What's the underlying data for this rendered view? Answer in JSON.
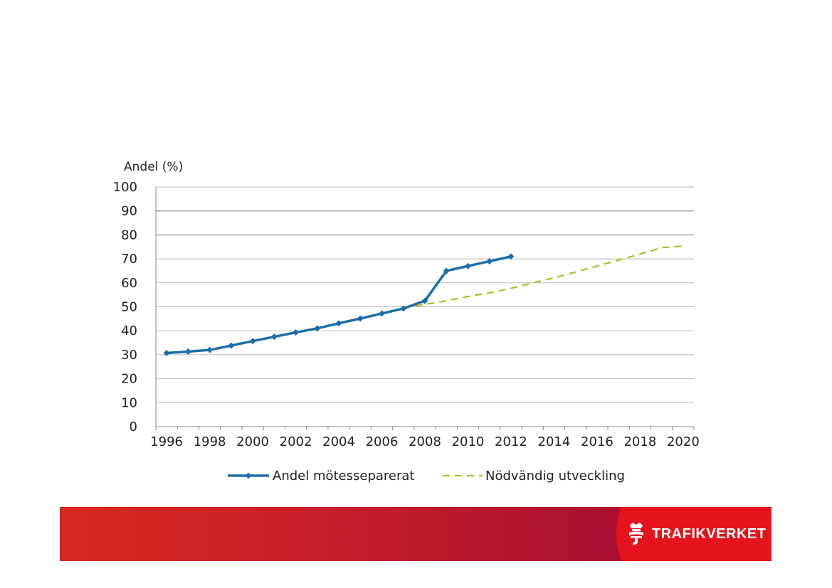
{
  "chart_data": {
    "type": "line",
    "ylabel": "Andel (%)",
    "ylim": [
      0,
      100
    ],
    "yticks": [
      0,
      10,
      20,
      30,
      40,
      50,
      60,
      70,
      80,
      90,
      100
    ],
    "xlim": [
      1995.5,
      2020.5
    ],
    "xticks": [
      1996,
      1998,
      2000,
      2002,
      2004,
      2006,
      2008,
      2010,
      2012,
      2014,
      2016,
      2018,
      2020
    ],
    "grid": true,
    "legend_position": "bottom",
    "series": [
      {
        "name": "Andel mötesseparerat",
        "style": "solid-markers",
        "color": "#1b6fa8",
        "x": [
          1996,
          1997,
          1998,
          1999,
          2000,
          2001,
          2002,
          2003,
          2004,
          2005,
          2006,
          2007,
          2008,
          2009,
          2010,
          2011,
          2012
        ],
        "y": [
          30.7,
          31.3,
          32.0,
          33.8,
          35.7,
          37.5,
          39.3,
          41.0,
          43.1,
          45.1,
          47.2,
          49.3,
          52.5,
          65.0,
          67.0,
          69.0,
          71.0
        ]
      },
      {
        "name": "Nödvändig utveckling",
        "style": "dashed",
        "color": "#a8c023",
        "x": [
          2007,
          2008,
          2009,
          2010,
          2011,
          2012,
          2013,
          2014,
          2015,
          2016,
          2017,
          2018,
          2019,
          2020
        ],
        "y": [
          49.5,
          51.0,
          52.5,
          54.3,
          55.8,
          57.7,
          60.0,
          62.1,
          64.5,
          67.0,
          69.5,
          72.0,
          74.7,
          75.3
        ]
      }
    ]
  },
  "footer": {
    "brand": "TRAFIKVERKET",
    "colors": {
      "left": "#d7281f",
      "right": "#e3141d"
    }
  }
}
